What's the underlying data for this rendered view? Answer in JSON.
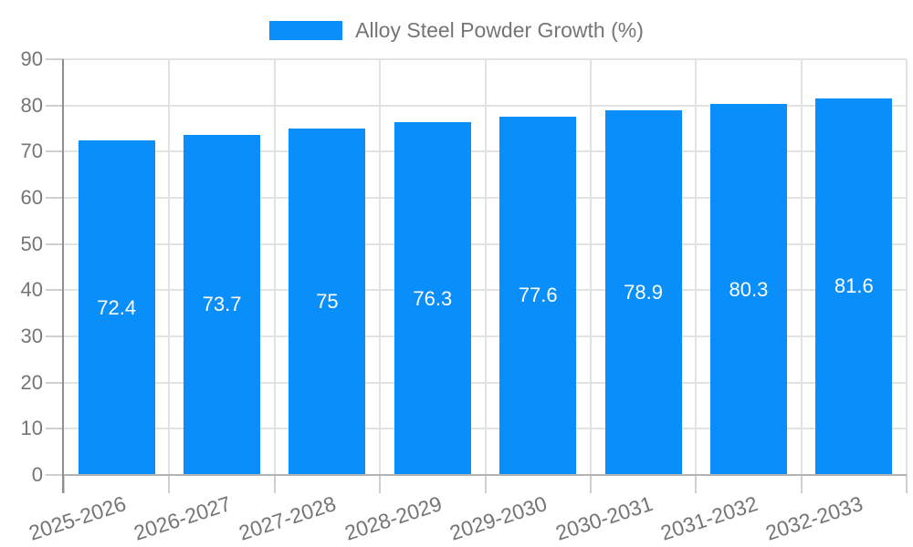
{
  "chart_data": {
    "type": "bar",
    "title": "",
    "legend": {
      "position": "top",
      "entries": [
        {
          "label": "Alloy Steel Powder Growth (%)",
          "color": "#0a8ef9"
        }
      ]
    },
    "categories": [
      "2025-2026",
      "2026-2027",
      "2027-2028",
      "2028-2029",
      "2029-2030",
      "2030-2031",
      "2031-2032",
      "2032-2033"
    ],
    "series": [
      {
        "name": "Alloy Steel Powder Growth (%)",
        "values": [
          72.4,
          73.7,
          75,
          76.3,
          77.6,
          78.9,
          80.3,
          81.6
        ],
        "value_labels": [
          "72.4",
          "73.7",
          "75",
          "76.3",
          "77.6",
          "78.9",
          "80.3",
          "81.6"
        ]
      }
    ],
    "xlabel": "",
    "ylabel": "",
    "ylim": [
      0,
      90
    ],
    "y_ticks": [
      0,
      10,
      20,
      30,
      40,
      50,
      60,
      70,
      80,
      90
    ],
    "grid": true,
    "colors": {
      "bar": "#0a8ef9",
      "grid_line": "#e2e2e2",
      "tick_mark": "#cfcfcf",
      "y_axis_line": "#8f8f8f",
      "x_axis_line": "#b3b3b3",
      "axis_text": "#757575",
      "value_label_text": "#ffffff",
      "background": "#ffffff"
    }
  }
}
